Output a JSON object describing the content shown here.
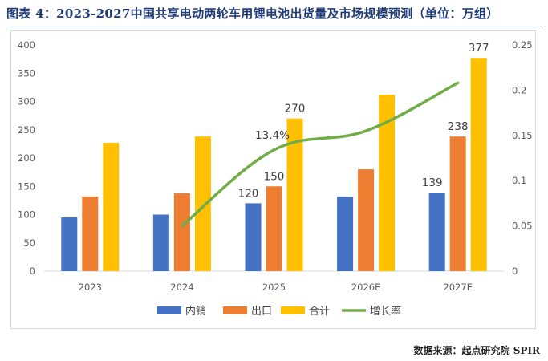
{
  "title": "图表 4：2023-2027中国共享电动两轮车用锂电池出货量及市场规模预测（单位：万组）",
  "source": "数据来源：起点研究院 SPIR",
  "colors": {
    "domestic": "#4472C4",
    "export": "#ED7D31",
    "total": "#FFC000",
    "growth": "#70AD47",
    "title": "#1f3b78"
  },
  "chart_data": {
    "type": "bar",
    "title": "2023-2027中国共享电动两轮车用锂电池出货量及市场规模预测（单位：万组）",
    "categories": [
      "2023",
      "2024",
      "2025",
      "2026E",
      "2027E"
    ],
    "series": [
      {
        "name": "内销",
        "kind": "bar",
        "axis": "left",
        "values": [
          95,
          100,
          120,
          132,
          139
        ]
      },
      {
        "name": "出口",
        "kind": "bar",
        "axis": "left",
        "values": [
          132,
          138,
          150,
          180,
          238
        ]
      },
      {
        "name": "合计",
        "kind": "bar",
        "axis": "left",
        "values": [
          227,
          238,
          270,
          312,
          377
        ]
      },
      {
        "name": "增长率",
        "kind": "line",
        "axis": "right",
        "values": [
          null,
          0.05,
          0.134,
          0.155,
          0.208
        ]
      }
    ],
    "data_labels": [
      {
        "series": 0,
        "index": 2,
        "text": "120"
      },
      {
        "series": 1,
        "index": 2,
        "text": "150"
      },
      {
        "series": 2,
        "index": 2,
        "text": "270"
      },
      {
        "series": 3,
        "index": 2,
        "text": "13.4%"
      },
      {
        "series": 0,
        "index": 4,
        "text": "139"
      },
      {
        "series": 1,
        "index": 4,
        "text": "238"
      },
      {
        "series": 2,
        "index": 4,
        "text": "377"
      }
    ],
    "y_left": {
      "min": 0,
      "max": 400,
      "ticks": [
        "0",
        "50",
        "100",
        "150",
        "200",
        "250",
        "300",
        "350",
        "400"
      ]
    },
    "y_right": {
      "min": 0,
      "max": 0.25,
      "ticks": [
        "0",
        "0.05",
        "0.1",
        "0.15",
        "0.2",
        "0.25"
      ]
    },
    "legend": [
      "内销",
      "出口",
      "合计",
      "增长率"
    ],
    "legend_position": "bottom",
    "grid": false
  }
}
